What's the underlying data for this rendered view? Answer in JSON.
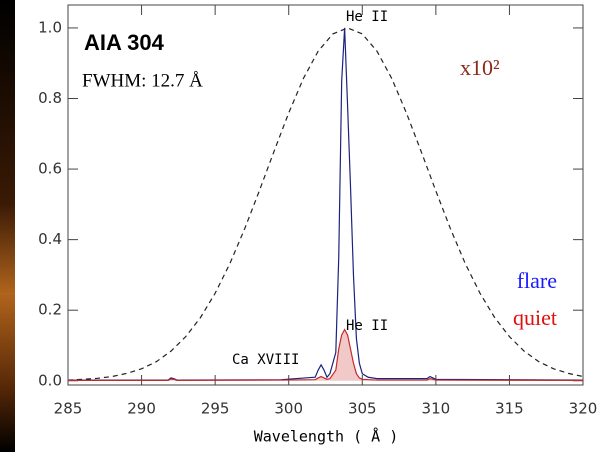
{
  "chart_data": {
    "type": "line",
    "title": "AIA 304",
    "subtitle": "FWHM: 12.7 Å",
    "x_label": "Wavelength ( Å )",
    "annotations": [
      "x10²",
      "He II",
      "He II",
      "Ca XVIII"
    ],
    "xlim": [
      285,
      320
    ],
    "xticks": [
      285,
      290,
      295,
      300,
      305,
      310,
      315,
      320
    ],
    "ylim": [
      -0.012,
      1.065
    ],
    "yticks": [
      {
        "value": 0,
        "label": "0.0"
      },
      {
        "value": 0.2,
        "label": "0.2"
      },
      {
        "value": 0.4,
        "label": "0.4"
      },
      {
        "value": 0.6,
        "label": "0.6"
      },
      {
        "value": 0.8,
        "label": "0.8"
      },
      {
        "value": 1.0,
        "label": "1.0"
      }
    ],
    "series": [
      {
        "color": "#222222",
        "line_style": "dashed",
        "x": [
          285,
          286,
          287,
          288,
          289,
          290,
          291,
          292,
          293,
          294,
          295,
          296,
          297,
          298,
          299,
          300,
          301,
          302,
          303,
          304,
          305,
          306,
          307,
          308,
          309,
          310,
          311,
          312,
          313,
          314,
          315,
          316,
          317,
          318,
          319,
          320
        ],
        "values": [
          0.002,
          0.004,
          0.007,
          0.012,
          0.021,
          0.034,
          0.054,
          0.084,
          0.125,
          0.179,
          0.248,
          0.332,
          0.43,
          0.538,
          0.65,
          0.759,
          0.857,
          0.934,
          0.983,
          1.0,
          0.983,
          0.934,
          0.857,
          0.759,
          0.65,
          0.538,
          0.43,
          0.332,
          0.248,
          0.179,
          0.125,
          0.084,
          0.054,
          0.034,
          0.021,
          0.012
        ]
      },
      {
        "name": "flare",
        "color": "#1a237e",
        "x": [
          285,
          291.8,
          292.0,
          292.2,
          292.4,
          299.5,
          301.8,
          302.0,
          302.2,
          302.4,
          302.6,
          302.8,
          303.2,
          303.4,
          303.6,
          303.8,
          304.0,
          304.2,
          304.4,
          304.6,
          304.8,
          305.0,
          305.4,
          306,
          309.4,
          309.6,
          309.8,
          310,
          320
        ],
        "values": [
          0.002,
          0.002,
          0.008,
          0.006,
          0.002,
          0.003,
          0.01,
          0.03,
          0.045,
          0.03,
          0.01,
          0.02,
          0.08,
          0.35,
          0.85,
          1.0,
          0.78,
          0.55,
          0.3,
          0.12,
          0.05,
          0.02,
          0.01,
          0.006,
          0.006,
          0.012,
          0.008,
          0.004,
          0.002
        ]
      },
      {
        "name": "quiet",
        "color": "#c62828",
        "fill": true,
        "x": [
          285,
          291.8,
          292.0,
          292.2,
          292.4,
          299.5,
          301.8,
          302.0,
          302.2,
          302.4,
          302.6,
          302.8,
          303.2,
          303.4,
          303.6,
          303.8,
          304.0,
          304.2,
          304.4,
          304.6,
          304.8,
          305.0,
          305.4,
          306,
          309.4,
          309.6,
          309.8,
          310,
          320
        ],
        "values": [
          0.001,
          0.001,
          0.005,
          0.004,
          0.001,
          0.002,
          0.003,
          0.008,
          0.012,
          0.008,
          0.004,
          0.006,
          0.03,
          0.09,
          0.13,
          0.145,
          0.13,
          0.09,
          0.05,
          0.02,
          0.008,
          0.004,
          0.003,
          0.002,
          0.002,
          0.006,
          0.004,
          0.002,
          0.001
        ]
      }
    ]
  }
}
